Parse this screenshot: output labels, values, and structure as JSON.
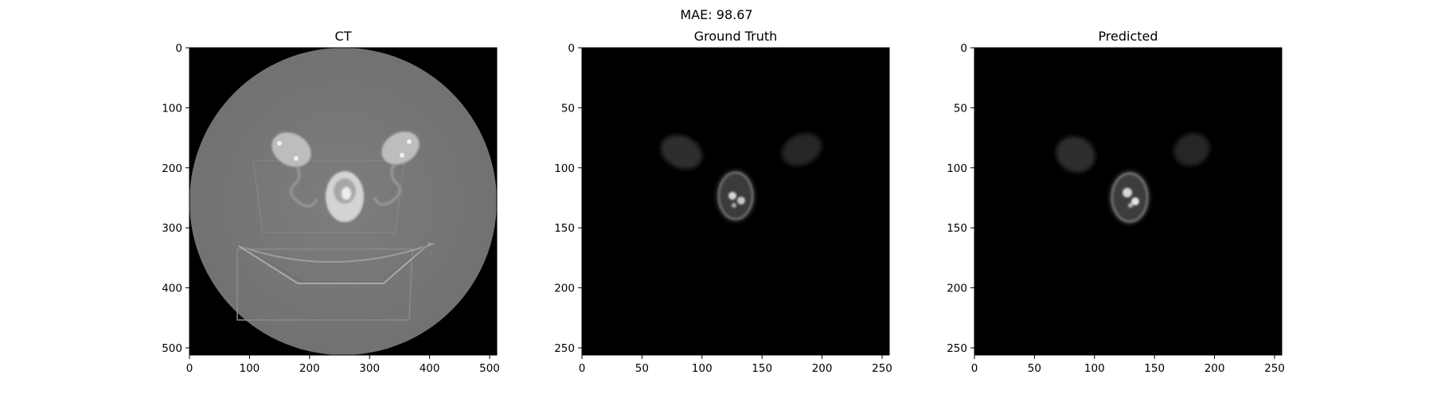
{
  "figure": {
    "suptitle": "MAE: 98.67"
  },
  "panels": [
    {
      "title": "CT",
      "x_ticks": [
        "0",
        "100",
        "200",
        "300",
        "400",
        "500"
      ],
      "y_ticks": [
        "0",
        "100",
        "200",
        "300",
        "400",
        "500"
      ],
      "extent": 512
    },
    {
      "title": "Ground Truth",
      "x_ticks": [
        "0",
        "50",
        "100",
        "150",
        "200",
        "250"
      ],
      "y_ticks": [
        "0",
        "50",
        "100",
        "150",
        "200",
        "250"
      ],
      "extent": 256
    },
    {
      "title": "Predicted",
      "x_ticks": [
        "0",
        "50",
        "100",
        "150",
        "200",
        "250"
      ],
      "y_ticks": [
        "0",
        "50",
        "100",
        "150",
        "200",
        "250"
      ],
      "extent": 256
    }
  ],
  "colors": {
    "background": "#000000",
    "ct_phantom": "#7a7a7a",
    "text": "#000000"
  }
}
